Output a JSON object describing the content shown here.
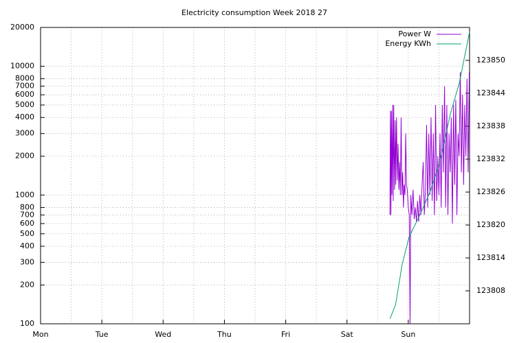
{
  "chart_data": {
    "type": "line",
    "title": "Electricity consumption Week 2018 27",
    "xlim": [
      0,
      168
    ],
    "xticks": [
      {
        "value": 0,
        "label": "Mon"
      },
      {
        "value": 24,
        "label": "Tue"
      },
      {
        "value": 48,
        "label": "Wed"
      },
      {
        "value": 72,
        "label": "Thu"
      },
      {
        "value": 96,
        "label": "Fri"
      },
      {
        "value": 120,
        "label": "Sat"
      },
      {
        "value": 144,
        "label": "Sun"
      }
    ],
    "xgrid": [
      12,
      36,
      60,
      84,
      108,
      132,
      156
    ],
    "ylim": [
      100,
      20000
    ],
    "log_y": true,
    "yticks": [
      100,
      200,
      300,
      400,
      500,
      600,
      700,
      800,
      1000,
      2000,
      3000,
      4000,
      5000,
      6000,
      7000,
      8000,
      10000,
      20000
    ],
    "y2lim": [
      123802,
      123856
    ],
    "y2ticks": [
      123808,
      123814,
      123820,
      123826,
      123832,
      123838,
      123844,
      123850
    ],
    "grid": true,
    "legend": "top-right",
    "series": [
      {
        "name": "Power W",
        "color": "#9400d3",
        "x": [
          136.8,
          137.0,
          137.2,
          137.4,
          137.6,
          137.9,
          138.1,
          138.3,
          138.6,
          138.9,
          139.1,
          139.4,
          139.7,
          140.0,
          140.3,
          140.6,
          140.9,
          141.2,
          141.5,
          141.8,
          142.1,
          142.4,
          142.7,
          143.0,
          143.3,
          143.6,
          144.0,
          144.4,
          144.7,
          145.0,
          145.44,
          145.88,
          146.32,
          146.76,
          147.2,
          147.64,
          148.08,
          148.52,
          148.96,
          149.4,
          149.84,
          150.28,
          150.72,
          151.16,
          151.6,
          152.04,
          152.48,
          152.92,
          153.36,
          153.8,
          154.24,
          154.68,
          155.12,
          155.56,
          156.0,
          156.44,
          156.88,
          157.32,
          157.76,
          158.2,
          158.64,
          159.08,
          159.52,
          159.96,
          160.4,
          160.84,
          161.28,
          161.72,
          162.16,
          162.6,
          163.04,
          163.48,
          163.92,
          164.36,
          164.8,
          165.24,
          165.68,
          166.12,
          166.56,
          167.0,
          167.44,
          167.88
        ],
        "values": [
          700,
          4500,
          700,
          4500,
          1000,
          5000,
          900,
          5000,
          1100,
          3800,
          1200,
          4000,
          1300,
          2500,
          1100,
          1800,
          1000,
          4000,
          1000,
          1500,
          800,
          1200,
          1000,
          3000,
          1200,
          1100,
          800,
          700,
          100,
          1000,
          700,
          1100,
          650,
          800,
          620,
          900,
          620,
          1000,
          700,
          1200,
          1800,
          700,
          1100,
          3500,
          800,
          3000,
          1000,
          4000,
          900,
          3000,
          700,
          5000,
          900,
          2000,
          1000,
          3000,
          800,
          5000,
          1500,
          7000,
          800,
          5000,
          700,
          3000,
          1500,
          4000,
          600,
          5000,
          1200,
          5500,
          700,
          3000,
          2000,
          9000,
          1500,
          6000,
          1200,
          5000,
          2000,
          8000,
          1500,
          9000
        ]
      },
      {
        "name": "Energy KWh",
        "color": "#009e73",
        "axis": "y2",
        "x": [
          136.8,
          139.0,
          141.6,
          144.3,
          148.3,
          152.4,
          156.4,
          160.5,
          164.0,
          168.0
        ],
        "values": [
          123802.9,
          123805.4,
          123812.8,
          123817.8,
          123821.6,
          123825.9,
          123831.5,
          123840.3,
          123845.9,
          123855.2
        ]
      }
    ]
  }
}
